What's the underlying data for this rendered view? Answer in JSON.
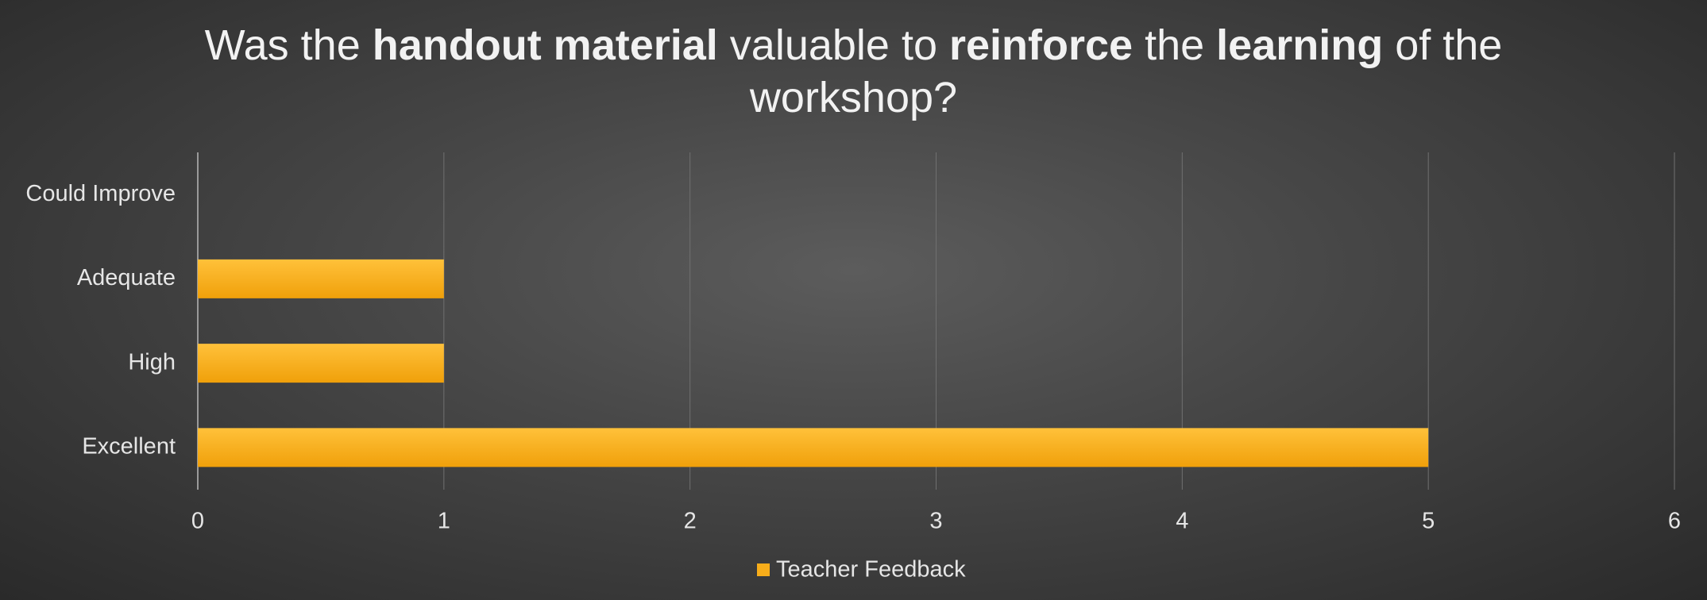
{
  "chart_data": {
    "type": "bar",
    "orientation": "horizontal",
    "title": [
      {
        "text": "Was the ",
        "bold": false
      },
      {
        "text": "handout material",
        "bold": true
      },
      {
        "text": " valuable to ",
        "bold": false
      },
      {
        "text": "reinforce",
        "bold": true
      },
      {
        "text": " the ",
        "bold": false
      },
      {
        "text": "learning",
        "bold": true
      },
      {
        "text": " of the workshop?",
        "bold": false
      }
    ],
    "categories": [
      "Could Improve",
      "Adequate",
      "High",
      "Excellent"
    ],
    "series": [
      {
        "name": "Teacher Feedback",
        "color": "#f7ad1a",
        "values": [
          0,
          1,
          1,
          5
        ]
      }
    ],
    "xlim": [
      0,
      6
    ],
    "xticks": [
      0,
      1,
      2,
      3,
      4,
      5,
      6
    ],
    "grid": true,
    "legend": "bottom"
  }
}
